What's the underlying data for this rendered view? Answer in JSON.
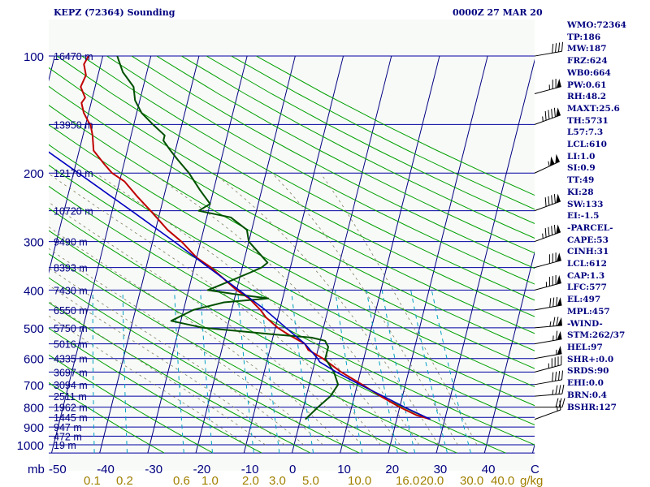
{
  "header": {
    "station": "KEPZ (72364) Sounding",
    "time": "0000Z 27 MAR 20"
  },
  "indices": [
    "WMO:72364",
    "TP:186",
    "MW:187",
    "FRZ:624",
    "WB0:664",
    "PW:0.61",
    "RH:48.2",
    "MAXT:25.6",
    "TH:5731",
    "L57:7.3",
    "LCL:610",
    "LI:1.0",
    "SI:0.9",
    "TT:49",
    "KI:28",
    "SW:133",
    "EI:-1.5",
    "-PARCEL-",
    "CAPE:53",
    "CINH:31",
    "LCL:612",
    "CAP:1.3",
    "LFC:577",
    "EL:497",
    "MPL:457",
    "-WIND-",
    "STM:262/37",
    "HEL:97",
    "SHR+:0.0",
    "SRDS:90",
    "EHI:0.0",
    "BRN:0.4",
    "BSHR:127"
  ],
  "colors": {
    "background": "#f8faf8",
    "isobar": "#0000a0",
    "isotherm": "#000080",
    "dry_adiabat": "#00a000",
    "mixing_ratio": "#00a0c0",
    "moist_adiabat": "#808060",
    "temperature": "#c00000",
    "dewpoint": "#005000",
    "parcel": "#0000c0",
    "text": "#000080",
    "mixing_label": "#a08000"
  },
  "chart_data": {
    "type": "line",
    "title": "KEPZ (72364) Sounding",
    "xlabel": "",
    "ylabel": "mb",
    "y_scale": "log",
    "ylim": [
      1050,
      100
    ],
    "xlim": [
      -50,
      50
    ],
    "pressure_ticks": [
      100,
      200,
      300,
      400,
      500,
      600,
      700,
      800,
      900,
      1000
    ],
    "temperature_ticks": [
      -50,
      -40,
      -30,
      -20,
      -10,
      0,
      10,
      20,
      30,
      40
    ],
    "axis_unit_label": "mb",
    "corner_label": "C",
    "height_labels": [
      {
        "p": 100,
        "label": "16470 m"
      },
      {
        "p": 150,
        "label": "13950 m"
      },
      {
        "p": 200,
        "label": "12170 m"
      },
      {
        "p": 250,
        "label": "10720 m"
      },
      {
        "p": 300,
        "label": "9490 m"
      },
      {
        "p": 350,
        "label": "8393 m"
      },
      {
        "p": 400,
        "label": "7430 m"
      },
      {
        "p": 450,
        "label": "6550 m"
      },
      {
        "p": 500,
        "label": "5750 m"
      },
      {
        "p": 550,
        "label": "5016 m"
      },
      {
        "p": 600,
        "label": "4335 m"
      },
      {
        "p": 650,
        "label": "3697 m"
      },
      {
        "p": 700,
        "label": "3094 m"
      },
      {
        "p": 750,
        "label": "2511 m"
      },
      {
        "p": 800,
        "label": "1962 m"
      },
      {
        "p": 850,
        "label": "1445 m"
      },
      {
        "p": 900,
        "label": "947 m"
      },
      {
        "p": 950,
        "label": "472 m"
      },
      {
        "p": 1000,
        "label": "19 m"
      }
    ],
    "mixing_ratio_labels": [
      "0.1",
      "0.2",
      "0.6",
      "1.0",
      "2.0",
      "3.0",
      "5.0",
      "10.0",
      "16.0",
      "20.0",
      "30.0",
      "40.0"
    ],
    "mixing_ratio_unit": "g/kg",
    "series": [
      {
        "name": "temperature",
        "p": [
          860,
          840,
          800,
          750,
          700,
          650,
          600,
          570,
          550,
          520,
          500,
          470,
          450,
          420,
          400,
          380,
          350,
          330,
          300,
          280,
          250,
          230,
          210,
          200,
          190,
          175,
          160,
          150,
          148,
          140,
          132,
          128,
          120,
          112,
          105,
          100
        ],
        "t": [
          27,
          24,
          20,
          15.5,
          11,
          6,
          1.5,
          -2,
          -3,
          -7,
          -9.5,
          -12.5,
          -14,
          -17,
          -20,
          -22.5,
          -26.5,
          -30,
          -34,
          -37.5,
          -42,
          -45.5,
          -49,
          -52,
          -54,
          -57,
          -58,
          -59,
          -59.5,
          -61,
          -62,
          -61.5,
          -63,
          -62.5,
          -63.5,
          -63
        ]
      },
      {
        "name": "dewpoint",
        "p": [
          860,
          800,
          750,
          700,
          650,
          600,
          560,
          540,
          530,
          520,
          500,
          480,
          450,
          430,
          420,
          410,
          400,
          380,
          360,
          350,
          340,
          300,
          280,
          260,
          250,
          240,
          220,
          200,
          185,
          175,
          165,
          160,
          150,
          140,
          130,
          120,
          110,
          100
        ],
        "t": [
          1,
          3,
          5,
          6,
          4.5,
          2,
          2,
          1,
          -2,
          -10,
          -25,
          -32,
          -28,
          -22,
          -13,
          -20,
          -26,
          -22,
          -18,
          -16,
          -15,
          -20,
          -21,
          -25,
          -32,
          -30,
          -33,
          -36,
          -39,
          -41,
          -43,
          -43,
          -46,
          -49,
          -51,
          -52,
          -55,
          -57
        ]
      },
      {
        "name": "parcel",
        "p": [
          860,
          800,
          750,
          700,
          650,
          612,
          600,
          550,
          500,
          450,
          400,
          350,
          300,
          250,
          200,
          160,
          130,
          110
        ],
        "t": [
          27,
          21,
          16,
          10.5,
          5,
          1,
          0.4,
          -3,
          -7.8,
          -13,
          -19.5,
          -27,
          -35.5,
          -46,
          -59,
          -72,
          -84,
          -94
        ]
      }
    ],
    "winds": [
      {
        "p": 860,
        "dir": 250,
        "spd": 15
      },
      {
        "p": 800,
        "dir": 270,
        "spd": 30
      },
      {
        "p": 750,
        "dir": 265,
        "spd": 35
      },
      {
        "p": 700,
        "dir": 260,
        "spd": 40
      },
      {
        "p": 650,
        "dir": 255,
        "spd": 45
      },
      {
        "p": 600,
        "dir": 260,
        "spd": 55
      },
      {
        "p": 550,
        "dir": 260,
        "spd": 65
      },
      {
        "p": 500,
        "dir": 265,
        "spd": 75
      },
      {
        "p": 450,
        "dir": 260,
        "spd": 80
      },
      {
        "p": 400,
        "dir": 255,
        "spd": 85
      },
      {
        "p": 350,
        "dir": 255,
        "spd": 80
      },
      {
        "p": 300,
        "dir": 250,
        "spd": 95
      },
      {
        "p": 250,
        "dir": 250,
        "spd": 90
      },
      {
        "p": 200,
        "dir": 245,
        "spd": 105
      },
      {
        "p": 150,
        "dir": 250,
        "spd": 95
      },
      {
        "p": 125,
        "dir": 255,
        "spd": 75
      },
      {
        "p": 100,
        "dir": 260,
        "spd": 40
      }
    ]
  }
}
